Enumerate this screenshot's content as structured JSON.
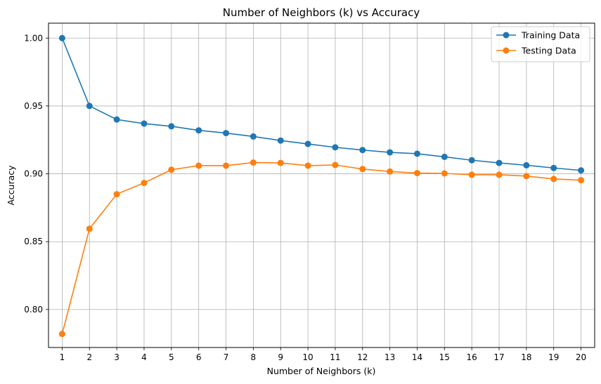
{
  "chart_data": {
    "type": "line",
    "title": "Number of Neighbors (k) vs Accuracy",
    "xlabel": "Number of Neighbors (k)",
    "ylabel": "Accuracy",
    "x": [
      1,
      2,
      3,
      4,
      5,
      6,
      7,
      8,
      9,
      10,
      11,
      12,
      13,
      14,
      15,
      16,
      17,
      18,
      19,
      20
    ],
    "xlim": [
      0.5,
      20.5
    ],
    "ylim": [
      0.772,
      1.011
    ],
    "yticks": [
      0.8,
      0.85,
      0.9,
      0.95,
      1.0
    ],
    "ytick_labels": [
      "0.80",
      "0.85",
      "0.90",
      "0.95",
      "1.00"
    ],
    "grid": true,
    "legend_position": "top-right",
    "series": [
      {
        "name": "Training Data",
        "color": "#1f77b4",
        "marker": "circle",
        "values": [
          1.0,
          0.95,
          0.94,
          0.937,
          0.935,
          0.932,
          0.93,
          0.9275,
          0.9245,
          0.922,
          0.9195,
          0.9175,
          0.9158,
          0.9148,
          0.9125,
          0.91,
          0.908,
          0.9063,
          0.9043,
          0.9025
        ]
      },
      {
        "name": "Testing Data",
        "color": "#ff7f0e",
        "marker": "circle",
        "values": [
          0.782,
          0.8595,
          0.885,
          0.8933,
          0.903,
          0.906,
          0.906,
          0.9083,
          0.908,
          0.906,
          0.9065,
          0.9035,
          0.9017,
          0.9005,
          0.9003,
          0.8993,
          0.8993,
          0.8983,
          0.8962,
          0.8953
        ]
      }
    ]
  }
}
